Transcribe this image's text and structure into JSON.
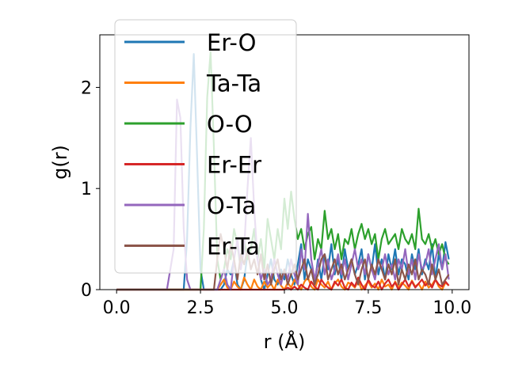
{
  "chart_data": {
    "type": "line",
    "title": "",
    "xlabel": "r (Å)",
    "ylabel": "g(r)",
    "xlim": [
      -0.5,
      10.5
    ],
    "ylim": [
      0,
      2.52
    ],
    "xticks": [
      0.0,
      2.5,
      5.0,
      7.5,
      10.0
    ],
    "xtick_labels": [
      "0.0",
      "2.5",
      "5.0",
      "7.5",
      "10.0"
    ],
    "yticks": [
      0,
      1,
      2
    ],
    "ytick_labels": [
      "0",
      "1",
      "2"
    ],
    "grid": false,
    "legend_position": "top-left",
    "series": [
      {
        "name": "Er-O",
        "color": "#1f77b4",
        "x": [
          0,
          0.1,
          0.2,
          0.3,
          0.4,
          0.5,
          0.6,
          0.7,
          0.8,
          0.9,
          1.0,
          1.1,
          1.2,
          1.3,
          1.4,
          1.5,
          1.6,
          1.7,
          1.8,
          1.9,
          2.0,
          2.1,
          2.2,
          2.3,
          2.4,
          2.5,
          2.6,
          2.7,
          2.8,
          2.9,
          3.0,
          3.1,
          3.2,
          3.3,
          3.4,
          3.5,
          3.6,
          3.7,
          3.8,
          3.9,
          4.0,
          4.1,
          4.2,
          4.3,
          4.4,
          4.5,
          4.6,
          4.7,
          4.8,
          4.9,
          5.0,
          5.1,
          5.2,
          5.3,
          5.4,
          5.5,
          5.6,
          5.7,
          5.8,
          5.9,
          6.0,
          6.1,
          6.2,
          6.3,
          6.4,
          6.5,
          6.6,
          6.7,
          6.8,
          6.9,
          7.0,
          7.1,
          7.2,
          7.3,
          7.4,
          7.5,
          7.6,
          7.7,
          7.8,
          7.9,
          8.0,
          8.1,
          8.2,
          8.3,
          8.4,
          8.5,
          8.6,
          8.7,
          8.8,
          8.9,
          9.0,
          9.1,
          9.2,
          9.3,
          9.4,
          9.5,
          9.6,
          9.7,
          9.8,
          9.9
        ],
        "y": [
          0,
          0,
          0,
          0,
          0,
          0,
          0,
          0,
          0,
          0,
          0,
          0,
          0,
          0,
          0,
          0,
          0,
          0,
          0,
          0,
          0,
          0.5,
          1.6,
          2.33,
          1.3,
          0.2,
          0,
          0,
          0,
          0,
          0,
          0,
          0.05,
          0.2,
          0.15,
          0.3,
          0.05,
          0,
          0.1,
          0.35,
          0.4,
          0.6,
          0.3,
          0.1,
          0,
          0.15,
          0.3,
          0.1,
          0.05,
          0.2,
          0.1,
          0.3,
          0.15,
          0.05,
          0.25,
          0.45,
          0.1,
          0.3,
          0.2,
          0.05,
          0.3,
          0.1,
          0.35,
          0.2,
          0.45,
          0.15,
          0.3,
          0.1,
          0.4,
          0.2,
          0.3,
          0.15,
          0.25,
          0.4,
          0.1,
          0.35,
          0.2,
          0.45,
          0.15,
          0.3,
          0.1,
          0.35,
          0.2,
          0.4,
          0.15,
          0.3,
          0.25,
          0.1,
          0.35,
          0.2,
          0.4,
          0.15,
          0.3,
          0.2,
          0.45,
          0.1,
          0.35,
          0.2,
          0.47,
          0.3
        ]
      },
      {
        "name": "Ta-Ta",
        "color": "#ff7f0e",
        "x": [
          0,
          0.5,
          1.0,
          1.5,
          2.0,
          2.5,
          3.0,
          3.1,
          3.2,
          3.3,
          3.4,
          3.5,
          3.6,
          3.7,
          3.8,
          3.9,
          4.0,
          4.1,
          4.2,
          4.3,
          4.4,
          4.5,
          4.6,
          4.7,
          4.8,
          4.9,
          5.0,
          5.1,
          5.2,
          5.3,
          5.4,
          5.5,
          5.6,
          5.7,
          5.8,
          5.9,
          6.0,
          6.1,
          6.2,
          6.3,
          6.4,
          6.5,
          6.6,
          6.7,
          6.8,
          6.9,
          7.0,
          7.1,
          7.2,
          7.3,
          7.4,
          7.5,
          7.6,
          7.7,
          7.8,
          7.9,
          8.0,
          8.1,
          8.2,
          8.3,
          8.4,
          8.5,
          8.6,
          8.7,
          8.8,
          8.9,
          9.0,
          9.1,
          9.2,
          9.3,
          9.4,
          9.5,
          9.6,
          9.7,
          9.8,
          9.9
        ],
        "y": [
          0,
          0,
          0,
          0,
          0,
          0,
          0,
          0.05,
          0.1,
          0.02,
          0,
          0.08,
          0.03,
          0,
          0.12,
          0.05,
          0,
          0.1,
          0.03,
          0,
          0.08,
          0.02,
          0.06,
          0,
          0.1,
          0.04,
          0,
          0.07,
          0.02,
          0.1,
          0.05,
          0,
          0.08,
          0.12,
          0.03,
          0,
          0.1,
          0.05,
          0.02,
          0.08,
          0,
          0.06,
          0.1,
          0.03,
          0,
          0.07,
          0.05,
          0.02,
          0.09,
          0,
          0.04,
          0.08,
          0.02,
          0.06,
          0,
          0.1,
          0.03,
          0.05,
          0,
          0.08,
          0.02,
          0.07,
          0.04,
          0,
          0.09,
          0.03,
          0.06,
          0,
          0.08,
          0.02,
          0.05,
          0.1,
          0.03,
          0,
          0.07,
          0.04
        ]
      },
      {
        "name": "O-O",
        "color": "#2ca02c",
        "x": [
          0,
          0.5,
          1.0,
          1.5,
          2.0,
          2.5,
          2.6,
          2.7,
          2.8,
          2.9,
          3.0,
          3.1,
          3.2,
          3.3,
          3.4,
          3.5,
          3.6,
          3.7,
          3.8,
          3.9,
          4.0,
          4.1,
          4.2,
          4.3,
          4.4,
          4.5,
          4.6,
          4.7,
          4.8,
          4.9,
          5.0,
          5.1,
          5.2,
          5.3,
          5.4,
          5.5,
          5.6,
          5.7,
          5.8,
          5.9,
          6.0,
          6.1,
          6.2,
          6.3,
          6.4,
          6.5,
          6.6,
          6.7,
          6.8,
          6.9,
          7.0,
          7.1,
          7.2,
          7.3,
          7.4,
          7.5,
          7.6,
          7.7,
          7.8,
          7.9,
          8.0,
          8.1,
          8.2,
          8.3,
          8.4,
          8.5,
          8.6,
          8.7,
          8.8,
          8.9,
          9.0,
          9.1,
          9.2,
          9.3,
          9.4,
          9.5,
          9.6,
          9.7,
          9.8,
          9.9
        ],
        "y": [
          0,
          0,
          0,
          0,
          0,
          0,
          0.6,
          1.9,
          2.35,
          1.4,
          0.3,
          0.1,
          0.2,
          0.4,
          0.3,
          0.6,
          0.45,
          0.2,
          0.5,
          0.3,
          0.4,
          0.6,
          0.3,
          0.5,
          0.2,
          0.7,
          0.5,
          0.3,
          0.6,
          0.4,
          0.9,
          0.6,
          0.97,
          0.7,
          0.5,
          0.6,
          0.4,
          0.55,
          0.62,
          0.3,
          0.5,
          0.4,
          0.78,
          0.5,
          0.6,
          0.4,
          0.55,
          0.3,
          0.5,
          0.45,
          0.6,
          0.4,
          0.55,
          0.65,
          0.5,
          0.6,
          0.45,
          0.55,
          0.3,
          0.5,
          0.6,
          0.45,
          0.5,
          0.55,
          0.4,
          0.6,
          0.5,
          0.45,
          0.55,
          0.4,
          0.8,
          0.5,
          0.45,
          0.55,
          0.4,
          0.5,
          0.35,
          0.45,
          0.3,
          0.25
        ]
      },
      {
        "name": "Er-Er",
        "color": "#d62728",
        "x": [
          0,
          0.5,
          1.0,
          1.5,
          2.0,
          2.5,
          3.0,
          3.5,
          4.0,
          4.5,
          5.0,
          5.1,
          5.2,
          5.3,
          5.4,
          5.5,
          5.6,
          5.7,
          5.8,
          5.9,
          6.0,
          6.1,
          6.2,
          6.3,
          6.4,
          6.5,
          6.6,
          6.7,
          6.8,
          6.9,
          7.0,
          7.1,
          7.2,
          7.3,
          7.4,
          7.5,
          7.6,
          7.7,
          7.8,
          7.9,
          8.0,
          8.1,
          8.2,
          8.3,
          8.4,
          8.5,
          8.6,
          8.7,
          8.8,
          8.9,
          9.0,
          9.1,
          9.2,
          9.3,
          9.4,
          9.5,
          9.6,
          9.7,
          9.8,
          9.9
        ],
        "y": [
          0,
          0,
          0,
          0,
          0,
          0,
          0,
          0,
          0,
          0,
          0,
          0.02,
          0,
          0.03,
          0,
          0.05,
          0.02,
          0,
          0.08,
          0.03,
          0,
          0.1,
          0.05,
          0.02,
          0,
          0.08,
          0.04,
          0.1,
          0.02,
          0,
          0.07,
          0.03,
          0.12,
          0.05,
          0,
          0.1,
          0.04,
          0.02,
          0.08,
          0,
          0.06,
          0.1,
          0.03,
          0.07,
          0,
          0.05,
          0.1,
          0.03,
          0.08,
          0.02,
          0.06,
          0.1,
          0.04,
          0.08,
          0.02,
          0.1,
          0.05,
          0.03,
          0.08,
          0.04
        ]
      },
      {
        "name": "O-Ta",
        "color": "#9467bd",
        "x": [
          0,
          0.5,
          1.0,
          1.5,
          1.7,
          1.8,
          1.9,
          2.0,
          2.1,
          2.2,
          2.3,
          2.4,
          2.5,
          2.6,
          2.7,
          2.8,
          2.9,
          3.0,
          3.1,
          3.2,
          3.3,
          3.4,
          3.5,
          3.6,
          3.7,
          3.8,
          3.9,
          4.0,
          4.1,
          4.2,
          4.3,
          4.4,
          4.5,
          4.6,
          4.7,
          4.8,
          4.9,
          5.0,
          5.1,
          5.2,
          5.3,
          5.4,
          5.5,
          5.6,
          5.7,
          5.8,
          5.9,
          6.0,
          6.1,
          6.2,
          6.3,
          6.4,
          6.5,
          6.6,
          6.7,
          6.8,
          6.9,
          7.0,
          7.1,
          7.2,
          7.3,
          7.4,
          7.5,
          7.6,
          7.7,
          7.8,
          7.9,
          8.0,
          8.1,
          8.2,
          8.3,
          8.4,
          8.5,
          8.6,
          8.7,
          8.8,
          8.9,
          9.0,
          9.1,
          9.2,
          9.3,
          9.4,
          9.5,
          9.6,
          9.7,
          9.8,
          9.9
        ],
        "y": [
          0,
          0,
          0,
          0,
          0.4,
          1.88,
          1.7,
          0.6,
          0.1,
          0,
          0,
          0,
          0,
          0,
          0,
          0,
          0,
          0,
          0.1,
          0.2,
          0.05,
          0,
          0.3,
          0.5,
          0.2,
          0.4,
          1.0,
          1.5,
          0.8,
          0.3,
          0.1,
          0.2,
          0.05,
          0.1,
          0.3,
          0.15,
          0.05,
          0.2,
          0.1,
          0.3,
          0.15,
          0.05,
          0.4,
          0.2,
          0.75,
          0.3,
          0.1,
          0.25,
          0.4,
          0.15,
          0.3,
          0.1,
          0.2,
          0.35,
          0.15,
          0.3,
          0.1,
          0.25,
          0.4,
          0.2,
          0.3,
          0.15,
          0.35,
          0.2,
          0.1,
          0.3,
          0.2,
          0.35,
          0.15,
          0.25,
          0.1,
          0.3,
          0.2,
          0.4,
          0.15,
          0.3,
          0.1,
          0.35,
          0.2,
          0.25,
          0.4,
          0.15,
          0.3,
          0.45,
          0.2,
          0.35,
          0.1
        ]
      },
      {
        "name": "Er-Ta",
        "color": "#8c564b",
        "x": [
          0,
          0.5,
          1.0,
          1.5,
          2.0,
          2.5,
          2.9,
          3.0,
          3.1,
          3.2,
          3.3,
          3.4,
          3.5,
          3.6,
          3.7,
          3.8,
          3.9,
          4.0,
          4.1,
          4.2,
          4.3,
          4.4,
          4.5,
          4.6,
          4.7,
          4.8,
          4.9,
          5.0,
          5.1,
          5.2,
          5.3,
          5.4,
          5.5,
          5.6,
          5.7,
          5.8,
          5.9,
          6.0,
          6.1,
          6.2,
          6.3,
          6.4,
          6.5,
          6.6,
          6.7,
          6.8,
          6.9,
          7.0,
          7.1,
          7.2,
          7.3,
          7.4,
          7.5,
          7.6,
          7.7,
          7.8,
          7.9,
          8.0,
          8.1,
          8.2,
          8.3,
          8.4,
          8.5,
          8.6,
          8.7,
          8.8,
          8.9,
          9.0,
          9.1,
          9.2,
          9.3,
          9.4,
          9.5,
          9.6,
          9.7,
          9.8,
          9.9
        ],
        "y": [
          0,
          0,
          0,
          0,
          0,
          0,
          0,
          0.3,
          0.55,
          0.4,
          0.2,
          0.45,
          0.3,
          0.1,
          0.35,
          0.25,
          0.4,
          0.2,
          0.3,
          0.15,
          0.35,
          0.1,
          0.25,
          0.05,
          0.2,
          0.3,
          0.1,
          0.2,
          0.05,
          0.15,
          0.25,
          0.1,
          0.2,
          0.3,
          0.1,
          0.2,
          0.05,
          0.15,
          0.3,
          0.35,
          0.1,
          0.2,
          0.3,
          0.15,
          0.25,
          0.1,
          0.2,
          0.3,
          0.15,
          0.05,
          0.2,
          0.3,
          0.1,
          0.25,
          0.15,
          0.3,
          0.2,
          0.1,
          0.25,
          0.15,
          0.3,
          0.05,
          0.2,
          0.1,
          0.25,
          0.15,
          0.3,
          0.1,
          0.2,
          0.15,
          0.05,
          0.25,
          0.1,
          0.2,
          0.05,
          0.1,
          0.15
        ]
      }
    ]
  }
}
